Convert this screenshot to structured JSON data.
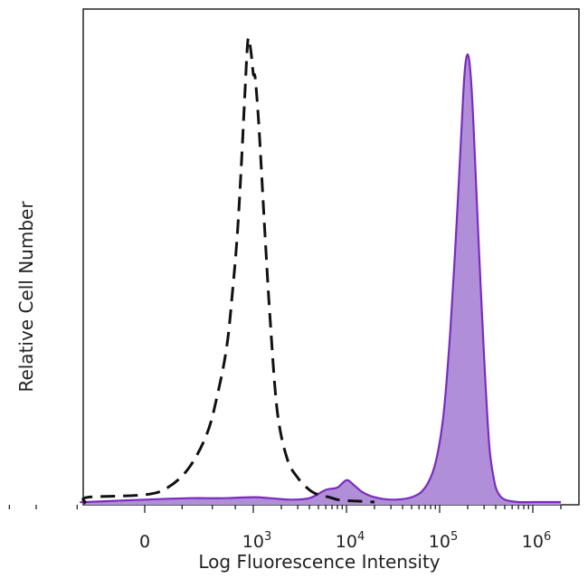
{
  "chart_data": {
    "type": "area",
    "title": "",
    "xlabel": "Log Fluorescence Intensity",
    "ylabel": "Relative Cell Number",
    "x_scale": "biexponential",
    "xlim": [
      -2000,
      2000000
    ],
    "ylim": [
      0,
      1.0
    ],
    "grid": false,
    "x_ticks": [
      {
        "value": 0,
        "base": "0",
        "exp": ""
      },
      {
        "value": 1000,
        "base": "10",
        "exp": "3"
      },
      {
        "value": 10000,
        "base": "10",
        "exp": "4"
      },
      {
        "value": 100000,
        "base": "10",
        "exp": "5"
      },
      {
        "value": 1000000,
        "base": "10",
        "exp": "6"
      }
    ],
    "series": [
      {
        "style": "dashed",
        "color": "#111111",
        "x": [
          -1600,
          -1000,
          -400,
          0,
          150,
          300,
          450,
          550,
          650,
          720,
          780,
          830,
          880,
          920,
          960,
          1000,
          1050,
          1150,
          1300,
          1500,
          1800,
          2300,
          3000,
          4000,
          5000,
          6500,
          8000,
          10000,
          13000,
          20000
        ],
        "y": [
          0.0,
          0.0,
          0.01,
          0.015,
          0.03,
          0.07,
          0.14,
          0.22,
          0.32,
          0.44,
          0.56,
          0.7,
          0.85,
          0.95,
          0.93,
          0.88,
          0.87,
          0.77,
          0.59,
          0.39,
          0.19,
          0.09,
          0.05,
          0.025,
          0.015,
          0.01,
          0.005,
          0.003,
          0.002,
          0.0
        ]
      },
      {
        "style": "filled",
        "color": "#7b2bbf",
        "fill": "#b08fd8",
        "x": [
          -1600,
          -1000,
          0,
          300,
          600,
          1000,
          1500,
          2500,
          4000,
          6000,
          8000,
          10000,
          12000,
          15000,
          20000,
          30000,
          50000,
          70000,
          90000,
          110000,
          130000,
          150000,
          170000,
          185000,
          200000,
          215000,
          230000,
          260000,
          300000,
          340000,
          380000,
          420000,
          500000,
          700000,
          1000000,
          1500000,
          2000000
        ],
        "y": [
          0.0,
          0.0,
          0.005,
          0.008,
          0.008,
          0.01,
          0.008,
          0.005,
          0.008,
          0.025,
          0.03,
          0.045,
          0.035,
          0.02,
          0.01,
          0.005,
          0.01,
          0.03,
          0.08,
          0.18,
          0.35,
          0.55,
          0.75,
          0.88,
          0.92,
          0.88,
          0.78,
          0.55,
          0.3,
          0.12,
          0.05,
          0.02,
          0.005,
          0.0,
          0.0,
          0.0,
          0.0
        ]
      }
    ]
  }
}
